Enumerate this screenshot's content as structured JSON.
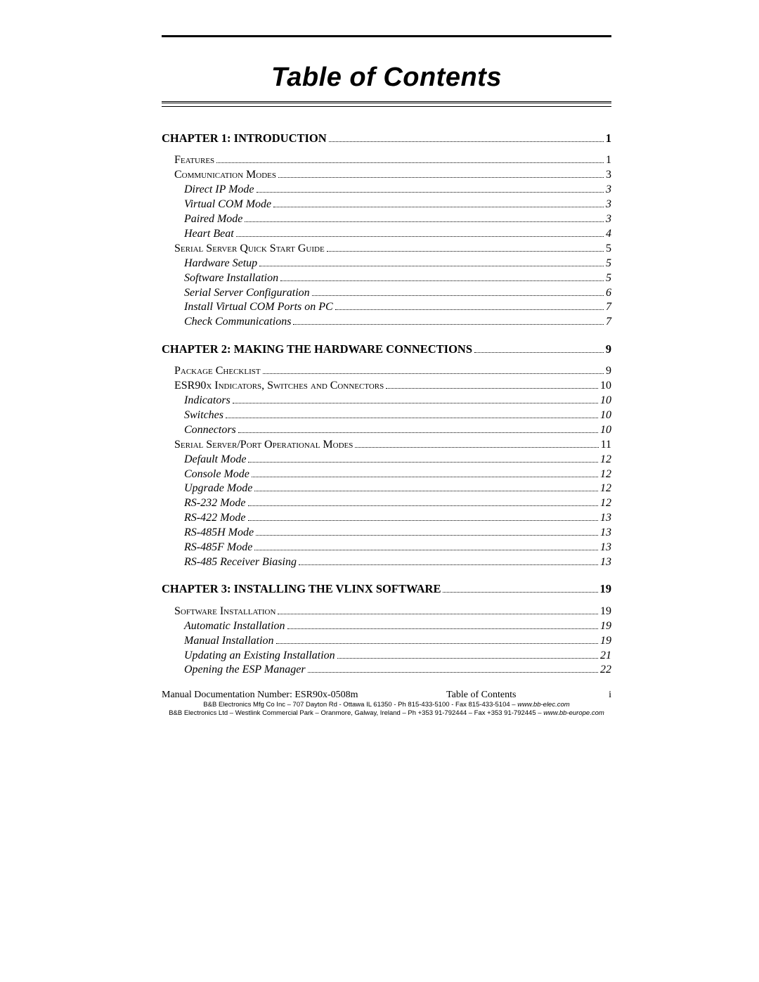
{
  "title": "Table of Contents",
  "chapters": [
    {
      "label": "CHAPTER 1: INTRODUCTION",
      "page": "1",
      "entries": [
        {
          "level": 1,
          "label": "Features",
          "page": "1"
        },
        {
          "level": 1,
          "label": "Communication Modes",
          "page": "3"
        },
        {
          "level": 2,
          "label": "Direct IP Mode",
          "page": "3"
        },
        {
          "level": 2,
          "label": "Virtual COM Mode",
          "page": "3"
        },
        {
          "level": 2,
          "label": "Paired Mode",
          "page": "3"
        },
        {
          "level": 2,
          "label": "Heart Beat",
          "page": "4"
        },
        {
          "level": 1,
          "label": "Serial Server Quick Start Guide",
          "page": "5"
        },
        {
          "level": 2,
          "label": "Hardware Setup",
          "page": "5"
        },
        {
          "level": 2,
          "label": "Software Installation",
          "page": "5"
        },
        {
          "level": 2,
          "label": "Serial Server Configuration",
          "page": "6"
        },
        {
          "level": 2,
          "label": "Install Virtual COM Ports on PC",
          "page": "7"
        },
        {
          "level": 2,
          "label": "Check Communications",
          "page": "7"
        }
      ]
    },
    {
      "label": "CHAPTER 2: MAKING THE HARDWARE CONNECTIONS",
      "page": "9",
      "entries": [
        {
          "level": 1,
          "label": "Package Checklist",
          "page": "9"
        },
        {
          "level": 1,
          "label": "ESR90x Indicators, Switches and Connectors",
          "page": "10"
        },
        {
          "level": 2,
          "label": "Indicators",
          "page": "10"
        },
        {
          "level": 2,
          "label": "Switches",
          "page": "10"
        },
        {
          "level": 2,
          "label": "Connectors",
          "page": "10"
        },
        {
          "level": 1,
          "label": "Serial Server/Port Operational Modes",
          "page": "11"
        },
        {
          "level": 2,
          "label": "Default Mode",
          "page": "12"
        },
        {
          "level": 2,
          "label": "Console Mode",
          "page": "12"
        },
        {
          "level": 2,
          "label": "Upgrade Mode",
          "page": "12"
        },
        {
          "level": 2,
          "label": "RS-232 Mode",
          "page": "12"
        },
        {
          "level": 2,
          "label": "RS-422 Mode",
          "page": "13"
        },
        {
          "level": 2,
          "label": "RS-485H Mode",
          "page": "13"
        },
        {
          "level": 2,
          "label": "RS-485F Mode",
          "page": "13"
        },
        {
          "level": 2,
          "label": "RS-485 Receiver Biasing",
          "page": "13"
        }
      ]
    },
    {
      "label": "CHAPTER 3: INSTALLING THE VLINX SOFTWARE",
      "page": "19",
      "entries": [
        {
          "level": 1,
          "label": "Software Installation",
          "page": "19"
        },
        {
          "level": 2,
          "label": "Automatic Installation",
          "page": "19"
        },
        {
          "level": 2,
          "label": "Manual Installation",
          "page": "19"
        },
        {
          "level": 2,
          "label": "Updating an Existing Installation",
          "page": "21"
        },
        {
          "level": 2,
          "label": "Opening the ESP Manager",
          "page": "22"
        }
      ]
    }
  ],
  "footer": {
    "docnum": "Manual Documentation Number: ESR90x-0508m",
    "center": "Table of Contents",
    "pagenum": "i",
    "line1": "B&B Electronics Mfg Co Inc – 707 Dayton Rd - Ottawa IL 61350 - Ph 815-433-5100 - Fax 815-433-5104 – ",
    "site1": "www.bb-elec.com",
    "line2": "B&B Electronics Ltd – Westlink Commercial Park – Oranmore, Galway, Ireland – Ph +353 91-792444 – Fax +353 91-792445 – ",
    "site2": "www.bb-europe.com"
  }
}
